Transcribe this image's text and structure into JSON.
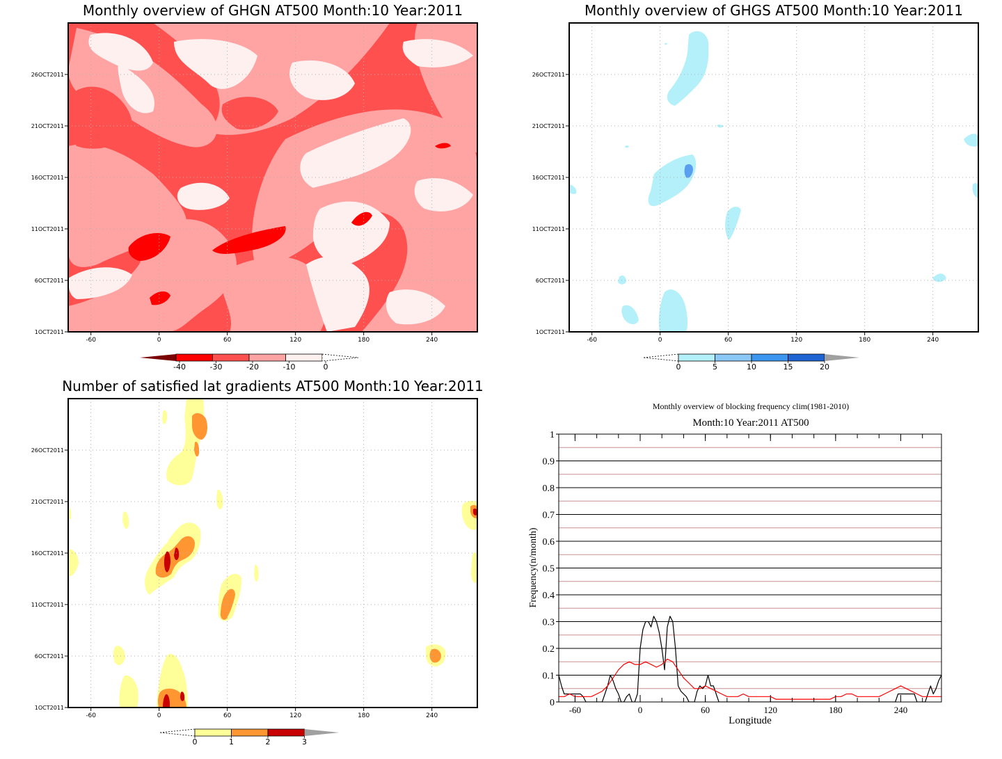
{
  "panels": {
    "ghgn": {
      "title": "Monthly overview of GHGN AT500 Month:10 Year:2011",
      "x_ticks": [
        "-60",
        "0",
        "60",
        "120",
        "180",
        "240"
      ],
      "x_tick_values": [
        -60,
        0,
        60,
        120,
        180,
        240
      ],
      "y_ticks": [
        "1OCT2011",
        "6OCT2011",
        "11OCT2011",
        "16OCT2011",
        "21OCT2011",
        "26OCT2011"
      ],
      "xlim": [
        -80,
        280
      ],
      "colorbar": {
        "labels": [
          "-40",
          "-30",
          "-20",
          "-10",
          "0"
        ],
        "colors": [
          "#7a0000",
          "#ff0000",
          "#ff5050",
          "#ffa3a3",
          "#fff0f0"
        ]
      }
    },
    "ghgs": {
      "title": "Monthly overview of GHGS AT500 Month:10 Year:2011",
      "x_ticks": [
        "-60",
        "0",
        "60",
        "120",
        "180",
        "240"
      ],
      "x_tick_values": [
        -60,
        0,
        60,
        120,
        180,
        240
      ],
      "y_ticks": [
        "1OCT2011",
        "6OCT2011",
        "11OCT2011",
        "16OCT2011",
        "21OCT2011",
        "26OCT2011"
      ],
      "xlim": [
        -80,
        280
      ],
      "colorbar": {
        "labels": [
          "0",
          "5",
          "10",
          "15",
          "20"
        ],
        "colors": [
          "#b4f0fa",
          "#8cc8f5",
          "#3c96f0",
          "#1e64d2",
          "#a0a0a0"
        ]
      }
    },
    "gradients": {
      "title": "Number of satisfied lat gradients AT500 Month:10 Year:2011",
      "x_ticks": [
        "-60",
        "0",
        "60",
        "120",
        "180",
        "240"
      ],
      "x_tick_values": [
        -60,
        0,
        60,
        120,
        180,
        240
      ],
      "y_ticks": [
        "1OCT2011",
        "6OCT2011",
        "11OCT2011",
        "16OCT2011",
        "21OCT2011",
        "26OCT2011"
      ],
      "xlim": [
        -80,
        280
      ],
      "colorbar": {
        "labels": [
          "0",
          "1",
          "2",
          "3"
        ],
        "colors": [
          "#ffff9a",
          "#ff9632",
          "#c80000",
          "#a0a0a0"
        ]
      }
    },
    "frequency": {
      "title": "Monthly overview of blocking frequency clim(1981-2010)",
      "subtitle": "Month:10 Year:2011  AT500",
      "xlabel": "Longitude",
      "ylabel": "Frequency(n/month)",
      "x_ticks": [
        "-60",
        "0",
        "60",
        "120",
        "180",
        "240"
      ],
      "y_ticks": [
        "0",
        "0.1",
        "0.2",
        "0.3",
        "0.4",
        "0.5",
        "0.6",
        "0.7",
        "0.8",
        "0.9",
        "1"
      ]
    }
  },
  "chart_data": [
    {
      "type": "heatmap",
      "title": "Monthly overview of GHGN AT500 Month:10 Year:2011",
      "x_range": [
        -80,
        280
      ],
      "y_range": [
        "1OCT2011",
        "31OCT2011"
      ],
      "levels": [
        -40,
        -30,
        -20,
        -10,
        0
      ],
      "colors": [
        "#7a0000",
        "#ff0000",
        "#ff5050",
        "#ffa3a3",
        "#fff0f0"
      ]
    },
    {
      "type": "heatmap",
      "title": "Monthly overview of GHGS AT500 Month:10 Year:2011",
      "x_range": [
        -80,
        280
      ],
      "y_range": [
        "1OCT2011",
        "31OCT2011"
      ],
      "levels": [
        0,
        5,
        10,
        15,
        20
      ],
      "colors": [
        "#b4f0fa",
        "#8cc8f5",
        "#3c96f0",
        "#1e64d2",
        "#a0a0a0"
      ]
    },
    {
      "type": "heatmap",
      "title": "Number of satisfied lat gradients AT500 Month:10 Year:2011",
      "x_range": [
        -80,
        280
      ],
      "y_range": [
        "1OCT2011",
        "31OCT2011"
      ],
      "levels": [
        0,
        1,
        2,
        3
      ],
      "colors": [
        "#ffff9a",
        "#ff9632",
        "#c80000",
        "#a0a0a0"
      ]
    },
    {
      "type": "line",
      "title": "Monthly overview of blocking frequency clim(1981-2010)",
      "subtitle": "Month:10 Year:2011  AT500",
      "xlabel": "Longitude",
      "ylabel": "Frequency(n/month)",
      "xlim": [
        -75,
        277.5
      ],
      "ylim": [
        0,
        1
      ],
      "x_ticks": [
        -60,
        0,
        60,
        120,
        180,
        240
      ],
      "grid": true,
      "series": [
        {
          "color": "#000000",
          "x": [
            -75,
            -72.5,
            -70,
            -67.5,
            -65,
            -62.5,
            -60,
            -57.5,
            -55,
            -52.5,
            -50,
            -47.5,
            -45,
            -42.5,
            -40,
            -37.5,
            -35,
            -32.5,
            -30,
            -27.5,
            -25,
            -22.5,
            -20,
            -17.5,
            -15,
            -12.5,
            -10,
            -7.5,
            -5,
            -2.5,
            0,
            2.5,
            5,
            7.5,
            10,
            12.5,
            15,
            17.5,
            20,
            22.5,
            25,
            27.5,
            30,
            32.5,
            35,
            37.5,
            40,
            42.5,
            45,
            47.5,
            50,
            52.5,
            55,
            57.5,
            60,
            62.5,
            65,
            67.5,
            70,
            72.5,
            75,
            80,
            100,
            150,
            200,
            235,
            237.5,
            240,
            242.5,
            245,
            247.5,
            250,
            252.5,
            255,
            257.5,
            260,
            262.5,
            265,
            267.5,
            270,
            272.5,
            275,
            277.5
          ],
          "values": [
            0.1,
            0.06,
            0.03,
            0.03,
            0.03,
            0.03,
            0.03,
            0.03,
            0.03,
            0.02,
            0,
            0,
            0,
            0,
            0,
            0,
            0,
            0.03,
            0.06,
            0.1,
            0.08,
            0.05,
            0.03,
            0,
            0,
            0.02,
            0.03,
            0,
            0,
            0.03,
            0.2,
            0.27,
            0.3,
            0.3,
            0.28,
            0.32,
            0.3,
            0.26,
            0.2,
            0.12,
            0.28,
            0.32,
            0.3,
            0.2,
            0.06,
            0.04,
            0.03,
            0.02,
            0,
            0,
            0,
            0.04,
            0.06,
            0.05,
            0.06,
            0.1,
            0.06,
            0.06,
            0.03,
            0,
            0,
            0,
            0,
            0,
            0,
            0,
            0.03,
            0.03,
            0.03,
            0.03,
            0.03,
            0.03,
            0.03,
            0,
            0,
            0,
            0,
            0.03,
            0.06,
            0.03,
            0.05,
            0.08,
            0.1
          ]
        },
        {
          "color": "#ff0000",
          "x": [
            -75,
            -70,
            -65,
            -60,
            -55,
            -50,
            -45,
            -40,
            -35,
            -30,
            -25,
            -20,
            -15,
            -10,
            -5,
            0,
            5,
            10,
            15,
            20,
            25,
            30,
            35,
            40,
            45,
            50,
            55,
            60,
            65,
            70,
            75,
            80,
            85,
            90,
            95,
            100,
            105,
            110,
            115,
            120,
            125,
            130,
            135,
            140,
            145,
            150,
            155,
            160,
            165,
            170,
            175,
            180,
            185,
            190,
            195,
            200,
            205,
            210,
            215,
            220,
            225,
            230,
            235,
            240,
            245,
            250,
            255,
            260,
            265,
            270,
            275,
            277.5
          ],
          "values": [
            0.02,
            0.02,
            0.03,
            0.02,
            0.02,
            0.02,
            0.02,
            0.03,
            0.04,
            0.06,
            0.09,
            0.12,
            0.14,
            0.15,
            0.14,
            0.14,
            0.15,
            0.14,
            0.13,
            0.14,
            0.16,
            0.15,
            0.12,
            0.09,
            0.07,
            0.05,
            0.05,
            0.06,
            0.05,
            0.04,
            0.03,
            0.02,
            0.02,
            0.02,
            0.03,
            0.02,
            0.02,
            0.02,
            0.02,
            0.02,
            0.01,
            0.01,
            0.01,
            0.01,
            0.01,
            0.01,
            0.01,
            0.01,
            0.01,
            0.01,
            0.01,
            0.02,
            0.02,
            0.03,
            0.03,
            0.02,
            0.02,
            0.02,
            0.02,
            0.02,
            0.03,
            0.04,
            0.05,
            0.06,
            0.05,
            0.04,
            0.03,
            0.02,
            0.02,
            0.02,
            0.02,
            0.02
          ]
        }
      ]
    }
  ]
}
